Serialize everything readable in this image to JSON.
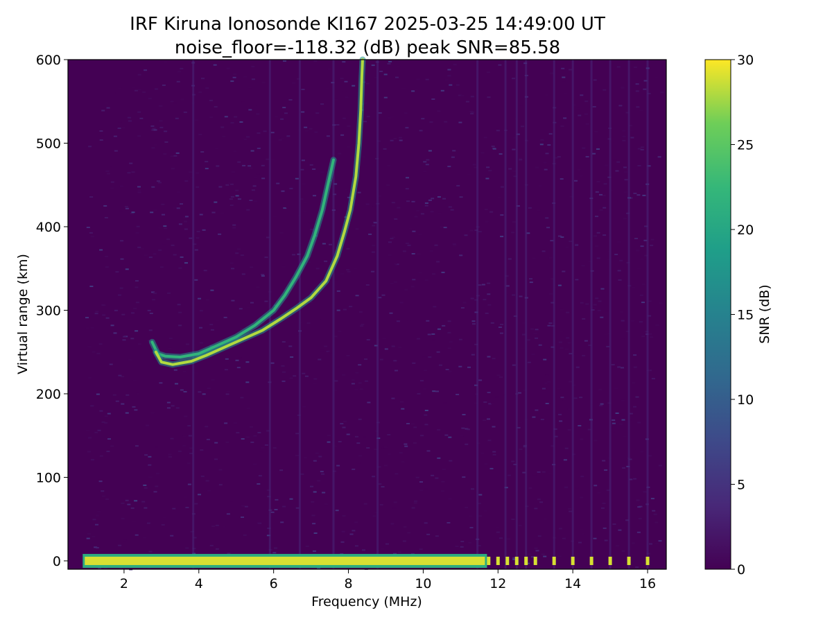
{
  "chart_data": {
    "type": "heatmap",
    "title": "IRF Kiruna Ionosonde KI167 2025-03-25 14:49:00  UT",
    "subtitle": "noise_floor=-118.32 (dB) peak SNR=85.58",
    "xlabel": "Frequency (MHz)",
    "ylabel": "Virtual range (km)",
    "xlim": [
      0.5,
      16.5
    ],
    "ylim": [
      -10,
      600
    ],
    "xticks": [
      "2",
      "4",
      "6",
      "8",
      "10",
      "12",
      "14",
      "16"
    ],
    "yticks": [
      "0",
      "100",
      "200",
      "300",
      "400",
      "500",
      "600"
    ],
    "colorbar": {
      "label": "SNR (dB)",
      "range": [
        0,
        30
      ],
      "ticks": [
        "0",
        "5",
        "10",
        "15",
        "20",
        "25",
        "30"
      ],
      "colormap": "viridis"
    },
    "background_color": "#440154",
    "grid": false,
    "traces": [
      {
        "name": "",
        "points": [
          [
            2.75,
            262
          ],
          [
            2.9,
            248
          ],
          [
            3.1,
            245
          ],
          [
            3.5,
            244
          ],
          [
            4.0,
            248
          ],
          [
            4.5,
            258
          ],
          [
            5.0,
            268
          ],
          [
            5.5,
            282
          ],
          [
            6.0,
            300
          ],
          [
            6.3,
            318
          ],
          [
            6.6,
            340
          ],
          [
            6.9,
            365
          ],
          [
            7.1,
            390
          ],
          [
            7.3,
            420
          ],
          [
            7.45,
            450
          ],
          [
            7.6,
            480
          ]
        ],
        "snr": 22
      },
      {
        "name": "",
        "points": [
          [
            2.85,
            250
          ],
          [
            3.0,
            238
          ],
          [
            3.3,
            235
          ],
          [
            3.8,
            239
          ],
          [
            4.2,
            246
          ],
          [
            4.8,
            258
          ],
          [
            5.2,
            266
          ],
          [
            5.7,
            276
          ],
          [
            6.2,
            290
          ],
          [
            6.6,
            302
          ],
          [
            7.0,
            315
          ],
          [
            7.4,
            335
          ],
          [
            7.7,
            365
          ],
          [
            7.9,
            395
          ],
          [
            8.05,
            420
          ],
          [
            8.2,
            460
          ],
          [
            8.28,
            500
          ],
          [
            8.33,
            540
          ],
          [
            8.36,
            580
          ],
          [
            8.38,
            600
          ]
        ],
        "snr": 28
      }
    ],
    "ground_band": {
      "range_km": [
        -5,
        5
      ],
      "continuous_freq": [
        0.95,
        11.65
      ],
      "snr": 29,
      "discrete_freqs": [
        11.75,
        12.0,
        12.25,
        12.5,
        12.75,
        13.0,
        13.5,
        14.0,
        14.5,
        15.0,
        15.5,
        16.0
      ]
    },
    "interference_lines_mhz": [
      3.85,
      5.9,
      6.7,
      7.6,
      8.78,
      11.45,
      12.2,
      12.5,
      12.75,
      13.5,
      14.0,
      14.5,
      15.0,
      15.5,
      16.0
    ]
  }
}
